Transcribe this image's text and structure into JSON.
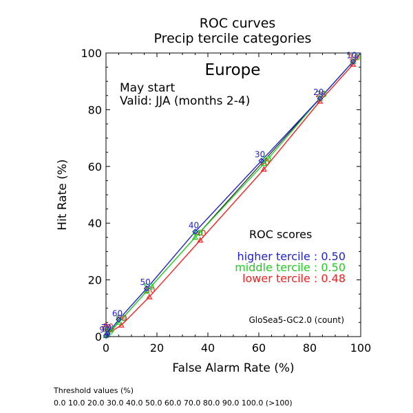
{
  "chart_data": {
    "type": "line",
    "title": "ROC curves",
    "subtitle": "Precip tercile categories",
    "region": "Europe",
    "start_label": "May start",
    "valid_label": "Valid: JJA (months 2-4)",
    "xlabel": "False Alarm Rate (%)",
    "ylabel": "Hit Rate (%)",
    "xlim": [
      0,
      100
    ],
    "ylim": [
      0,
      100
    ],
    "xticks": [
      "0",
      "20",
      "40",
      "60",
      "80",
      "100"
    ],
    "yticks": [
      "0",
      "20",
      "40",
      "60",
      "80",
      "100"
    ],
    "grid": false,
    "diagonal": true,
    "scores_heading": "ROC scores",
    "model_label": "GloSea5-GC2.0 (count)",
    "series": [
      {
        "name": "higher tercile",
        "score_text": "higher tercile : 0.50",
        "color": "#2222cc",
        "marker": "diamond",
        "points": [
          {
            "x": 0,
            "y": 0,
            "label": ""
          },
          {
            "x": 0,
            "y": 0.3,
            "label": "90"
          },
          {
            "x": 0.6,
            "y": 1.0,
            "label": "70"
          },
          {
            "x": 5,
            "y": 6,
            "label": "60"
          },
          {
            "x": 16,
            "y": 17,
            "label": "50"
          },
          {
            "x": 35,
            "y": 37,
            "label": "40"
          },
          {
            "x": 61,
            "y": 62,
            "label": "30"
          },
          {
            "x": 84,
            "y": 84,
            "label": "20"
          },
          {
            "x": 97,
            "y": 97,
            "label": "10"
          },
          {
            "x": 100,
            "y": 100,
            "label": ""
          }
        ]
      },
      {
        "name": "middle tercile",
        "score_text": "middle tercile : 0.50",
        "color": "#22cc22",
        "marker": "triangle",
        "points": [
          {
            "x": 0,
            "y": 0,
            "label": ""
          },
          {
            "x": 0,
            "y": 0.3,
            "label": "90"
          },
          {
            "x": 0.6,
            "y": 1.0,
            "label": "70"
          },
          {
            "x": 5,
            "y": 5,
            "label": "60"
          },
          {
            "x": 16,
            "y": 16,
            "label": "50"
          },
          {
            "x": 35,
            "y": 35,
            "label": "40"
          },
          {
            "x": 62,
            "y": 61,
            "label": "30"
          },
          {
            "x": 84,
            "y": 84,
            "label": "20"
          },
          {
            "x": 97,
            "y": 97,
            "label": "10"
          },
          {
            "x": 100,
            "y": 100,
            "label": ""
          }
        ]
      },
      {
        "name": "lower tercile",
        "score_text": "lower tercile : 0.48",
        "color": "#ee2222",
        "marker": "triangle",
        "points": [
          {
            "x": 0,
            "y": 0,
            "label": ""
          },
          {
            "x": 0,
            "y": 0.3,
            "label": "90"
          },
          {
            "x": 0.6,
            "y": 1.0,
            "label": "70"
          },
          {
            "x": 6,
            "y": 4,
            "label": "60"
          },
          {
            "x": 17,
            "y": 14,
            "label": "50"
          },
          {
            "x": 37,
            "y": 34,
            "label": "40"
          },
          {
            "x": 62,
            "y": 59,
            "label": "30"
          },
          {
            "x": 84,
            "y": 83,
            "label": "20"
          },
          {
            "x": 97,
            "y": 96,
            "label": "10"
          },
          {
            "x": 100,
            "y": 100,
            "label": ""
          }
        ]
      }
    ]
  },
  "footer": {
    "threshold_heading": "Threshold values (%)",
    "threshold_values": "0.0 10.0 20.0 30.0 40.0 50.0 60.0 70.0 80.0 90.0 100.0 (>100)"
  }
}
